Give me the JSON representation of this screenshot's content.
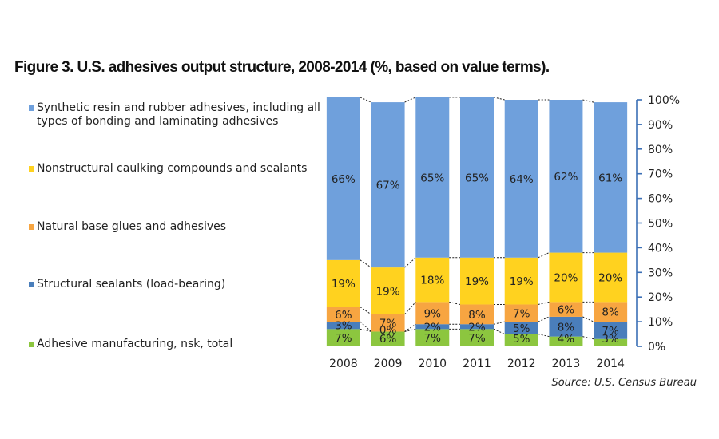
{
  "chart_data": {
    "type": "bar",
    "stacked": true,
    "title": "Figure 3. U.S. adhesives output structure, 2008-2014 (%, based on value terms).",
    "source": "Source: U.S. Census Bureau",
    "categories": [
      "2008",
      "2009",
      "2010",
      "2011",
      "2012",
      "2013",
      "2014"
    ],
    "ylim": [
      0,
      100
    ],
    "yticks": [
      "0%",
      "10%",
      "20%",
      "30%",
      "40%",
      "50%",
      "60%",
      "70%",
      "80%",
      "90%",
      "100%"
    ],
    "series": [
      {
        "name": "Adhesive manufacturing, nsk, total",
        "color": "#8cc63f",
        "values": [
          7,
          6,
          7,
          7,
          5,
          4,
          3
        ],
        "labels": [
          "7%",
          "6%",
          "7%",
          "7%",
          "5%",
          "4%",
          "3%"
        ]
      },
      {
        "name": "Structural sealants (load-bearing)",
        "color": "#4a7ebb",
        "values": [
          3,
          0,
          2,
          2,
          5,
          8,
          7
        ],
        "labels": [
          "3%",
          "0%",
          "2%",
          "2%",
          "5%",
          "8%",
          "7%"
        ]
      },
      {
        "name": "Natural base glues and adhesives",
        "color": "#f7a541",
        "values": [
          6,
          7,
          9,
          8,
          7,
          6,
          8
        ],
        "labels": [
          "6%",
          "7%",
          "9%",
          "8%",
          "7%",
          "6%",
          "8%"
        ]
      },
      {
        "name": "Nonstructural caulking compounds and sealants",
        "color": "#ffd21f",
        "values": [
          19,
          19,
          18,
          19,
          19,
          20,
          20
        ],
        "labels": [
          "19%",
          "19%",
          "18%",
          "19%",
          "19%",
          "20%",
          "20%"
        ]
      },
      {
        "name": "Synthetic resin and rubber adhesives, including all types of bonding and laminating adhesives",
        "color": "#6fa0dc",
        "values": [
          66,
          67,
          65,
          65,
          64,
          62,
          61
        ],
        "labels": [
          "66%",
          "67%",
          "65%",
          "65%",
          "64%",
          "62%",
          "61%"
        ]
      }
    ],
    "legend_order": [
      4,
      3,
      2,
      1,
      0
    ]
  }
}
